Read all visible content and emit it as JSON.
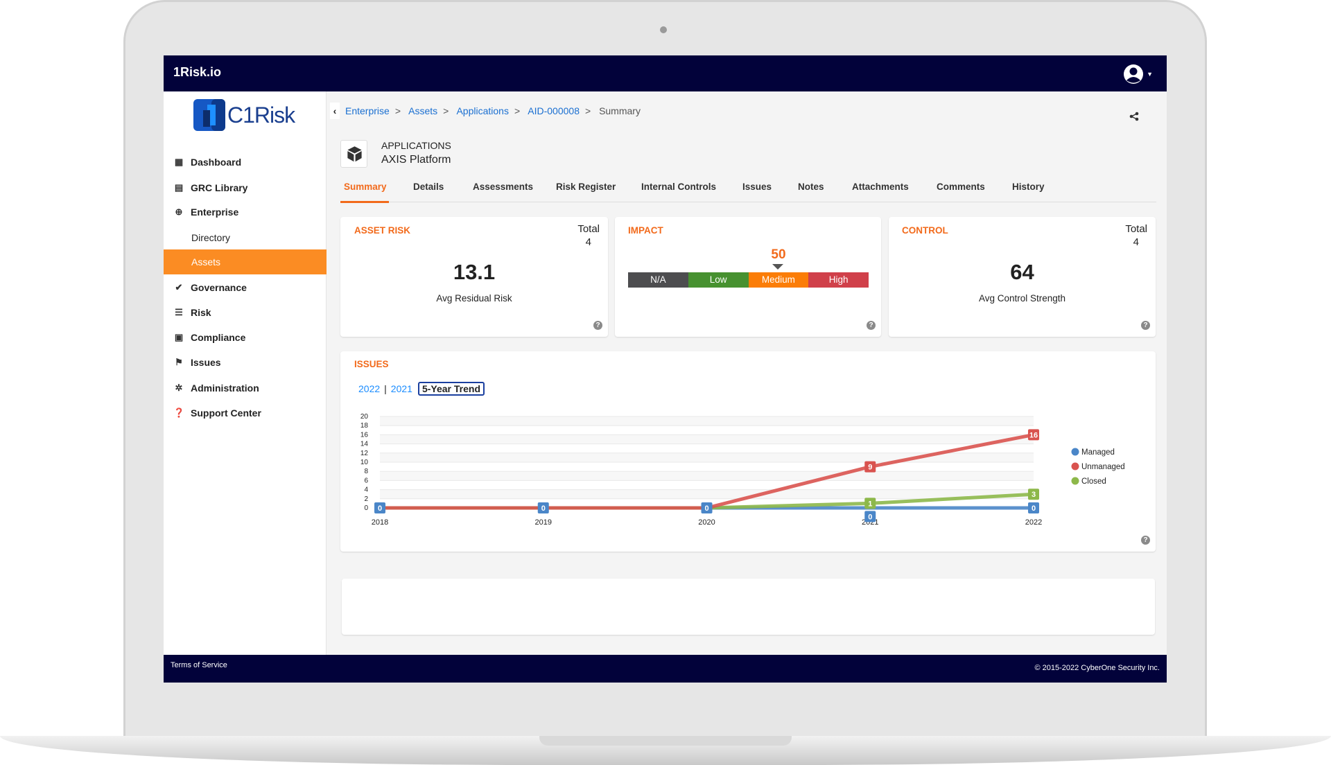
{
  "app": {
    "title": "1Risk.io",
    "logo_text": "C1Risk"
  },
  "sidebar": {
    "items": [
      {
        "label": "Dashboard",
        "icon": "grid-icon"
      },
      {
        "label": "GRC Library",
        "icon": "book-icon"
      },
      {
        "label": "Enterprise",
        "icon": "globe-icon"
      },
      {
        "label": "Directory",
        "sub": true
      },
      {
        "label": "Assets",
        "sub": true,
        "active": true
      },
      {
        "label": "Governance",
        "icon": "check-icon"
      },
      {
        "label": "Risk",
        "icon": "list-icon"
      },
      {
        "label": "Compliance",
        "icon": "clipboard-icon"
      },
      {
        "label": "Issues",
        "icon": "flag-icon"
      },
      {
        "label": "Administration",
        "icon": "gear-icon"
      },
      {
        "label": "Support Center",
        "icon": "question-icon"
      }
    ]
  },
  "breadcrumb": [
    "Enterprise",
    "Assets",
    "Applications",
    "AID-000008",
    "Summary"
  ],
  "asset": {
    "type": "APPLICATIONS",
    "name": "AXIS Platform"
  },
  "tabs": [
    "Summary",
    "Details",
    "Assessments",
    "Risk Register",
    "Internal Controls",
    "Issues",
    "Notes",
    "Attachments",
    "Comments",
    "History"
  ],
  "asset_risk": {
    "title": "ASSET RISK",
    "total_label": "Total",
    "total": "4",
    "value": "13.1",
    "caption": "Avg Residual Risk"
  },
  "impact": {
    "title": "IMPACT",
    "value": "50",
    "levels": [
      {
        "label": "N/A",
        "color": "#4d4d4f"
      },
      {
        "label": "Low",
        "color": "#479130"
      },
      {
        "label": "Medium",
        "color": "#fb7d07"
      },
      {
        "label": "High",
        "color": "#d0404a"
      }
    ]
  },
  "control": {
    "title": "CONTROL",
    "total_label": "Total",
    "total": "4",
    "value": "64",
    "caption": "Avg Control Strength"
  },
  "issues": {
    "title": "ISSUES",
    "year_links": [
      "2022",
      "2021"
    ],
    "trend_label": "5-Year Trend"
  },
  "chart_data": {
    "type": "line",
    "x": [
      "2018",
      "2019",
      "2020",
      "2021",
      "2022"
    ],
    "ylim": [
      0,
      20
    ],
    "yticks": [
      0,
      2,
      4,
      6,
      8,
      10,
      12,
      14,
      16,
      18,
      20
    ],
    "legend": "right",
    "series": [
      {
        "name": "Managed",
        "color": "#4a86c8",
        "values": [
          0,
          0,
          0,
          0,
          0
        ]
      },
      {
        "name": "Unmanaged",
        "color": "#d9534f",
        "values": [
          0,
          0,
          0,
          9,
          16
        ]
      },
      {
        "name": "Closed",
        "color": "#8db84a",
        "values": [
          0,
          0,
          0,
          1,
          3
        ]
      }
    ]
  },
  "footer": {
    "terms": "Terms of Service",
    "copyright": "© 2015-2022 CyberOne Security Inc."
  }
}
